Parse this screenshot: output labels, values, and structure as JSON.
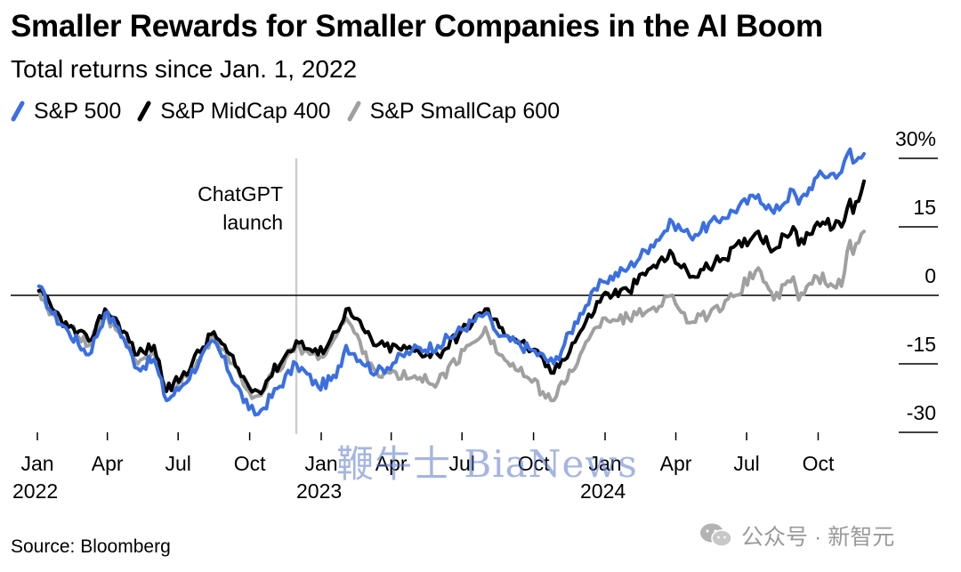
{
  "chart_data": {
    "type": "line",
    "title": "Smaller Rewards for Smaller Companies in the AI Boom",
    "subtitle": "Total returns since Jan. 1, 2022",
    "source": "Source: Bloomberg",
    "y_unit": "%",
    "ylim": [
      -35,
      32
    ],
    "y_ticks": [
      {
        "value": 30,
        "label": "30%"
      },
      {
        "value": 15,
        "label": "15"
      },
      {
        "value": 0,
        "label": "0"
      },
      {
        "value": -15,
        "label": "-15"
      },
      {
        "value": -30,
        "label": "-30"
      }
    ],
    "x_ticks": [
      {
        "date": "2022-01-01",
        "label": "Jan",
        "year": "2022"
      },
      {
        "date": "2022-04-01",
        "label": "Apr",
        "year": ""
      },
      {
        "date": "2022-07-01",
        "label": "Jul",
        "year": ""
      },
      {
        "date": "2022-10-01",
        "label": "Oct",
        "year": ""
      },
      {
        "date": "2023-01-01",
        "label": "Jan",
        "year": "2023"
      },
      {
        "date": "2023-04-01",
        "label": "Apr",
        "year": ""
      },
      {
        "date": "2023-07-01",
        "label": "Jul",
        "year": ""
      },
      {
        "date": "2023-10-01",
        "label": "Oct",
        "year": ""
      },
      {
        "date": "2024-01-01",
        "label": "Jan",
        "year": "2024"
      },
      {
        "date": "2024-04-01",
        "label": "Apr",
        "year": ""
      },
      {
        "date": "2024-07-01",
        "label": "Jul",
        "year": ""
      },
      {
        "date": "2024-10-01",
        "label": "Oct",
        "year": ""
      }
    ],
    "xlim": [
      "2022-01-01",
      "2024-12-15"
    ],
    "annotation": {
      "date": "2022-11-30",
      "text": [
        "ChatGPT",
        "launch"
      ]
    },
    "series": [
      {
        "name": "S&P 500",
        "color": "#3b6fe0",
        "points": [
          [
            "2022-01-03",
            2
          ],
          [
            "2022-01-20",
            -4
          ],
          [
            "2022-02-10",
            -8
          ],
          [
            "2022-03-08",
            -13
          ],
          [
            "2022-03-29",
            -4
          ],
          [
            "2022-04-15",
            -7
          ],
          [
            "2022-05-10",
            -16
          ],
          [
            "2022-05-31",
            -14
          ],
          [
            "2022-06-16",
            -23
          ],
          [
            "2022-07-05",
            -20
          ],
          [
            "2022-08-16",
            -10
          ],
          [
            "2022-09-30",
            -25
          ],
          [
            "2022-10-12",
            -26
          ],
          [
            "2022-11-30",
            -15
          ],
          [
            "2022-12-28",
            -20
          ],
          [
            "2023-01-20",
            -18
          ],
          [
            "2023-02-02",
            -11
          ],
          [
            "2023-03-13",
            -17
          ],
          [
            "2023-04-28",
            -12
          ],
          [
            "2023-05-31",
            -11
          ],
          [
            "2023-07-31",
            -4
          ],
          [
            "2023-08-18",
            -9
          ],
          [
            "2023-09-29",
            -12
          ],
          [
            "2023-10-27",
            -15
          ],
          [
            "2023-11-30",
            -4
          ],
          [
            "2023-12-29",
            3
          ],
          [
            "2024-01-31",
            6
          ],
          [
            "2024-02-29",
            11
          ],
          [
            "2024-03-28",
            16
          ],
          [
            "2024-04-19",
            13
          ],
          [
            "2024-05-31",
            17
          ],
          [
            "2024-07-16",
            22
          ],
          [
            "2024-08-05",
            18
          ],
          [
            "2024-08-30",
            23
          ],
          [
            "2024-09-06",
            20
          ],
          [
            "2024-09-30",
            26
          ],
          [
            "2024-10-31",
            27
          ],
          [
            "2024-11-11",
            32
          ],
          [
            "2024-11-15",
            29
          ],
          [
            "2024-11-29",
            31
          ]
        ]
      },
      {
        "name": "S&P MidCap 400",
        "color": "#000000",
        "points": [
          [
            "2022-01-03",
            1
          ],
          [
            "2022-01-20",
            -3
          ],
          [
            "2022-02-10",
            -7
          ],
          [
            "2022-03-08",
            -10
          ],
          [
            "2022-03-29",
            -3
          ],
          [
            "2022-04-15",
            -6
          ],
          [
            "2022-05-10",
            -13
          ],
          [
            "2022-05-31",
            -11
          ],
          [
            "2022-06-16",
            -21
          ],
          [
            "2022-07-05",
            -18
          ],
          [
            "2022-08-16",
            -8
          ],
          [
            "2022-09-30",
            -20
          ],
          [
            "2022-10-12",
            -21
          ],
          [
            "2022-11-30",
            -10
          ],
          [
            "2022-12-28",
            -13
          ],
          [
            "2023-01-20",
            -8
          ],
          [
            "2023-02-02",
            -3
          ],
          [
            "2023-03-13",
            -11
          ],
          [
            "2023-04-28",
            -12
          ],
          [
            "2023-05-31",
            -13
          ],
          [
            "2023-07-31",
            -3
          ],
          [
            "2023-08-18",
            -7
          ],
          [
            "2023-09-29",
            -12
          ],
          [
            "2023-10-27",
            -17
          ],
          [
            "2023-11-30",
            -8
          ],
          [
            "2023-12-29",
            0
          ],
          [
            "2024-01-31",
            1
          ],
          [
            "2024-02-29",
            6
          ],
          [
            "2024-03-28",
            9
          ],
          [
            "2024-04-19",
            4
          ],
          [
            "2024-05-31",
            8
          ],
          [
            "2024-07-16",
            14
          ],
          [
            "2024-08-05",
            10
          ],
          [
            "2024-08-30",
            15
          ],
          [
            "2024-09-06",
            11
          ],
          [
            "2024-09-30",
            16
          ],
          [
            "2024-10-31",
            15
          ],
          [
            "2024-11-11",
            21
          ],
          [
            "2024-11-15",
            18
          ],
          [
            "2024-11-29",
            25
          ]
        ]
      },
      {
        "name": "S&P SmallCap 600",
        "color": "#a0a0a0",
        "points": [
          [
            "2022-01-03",
            1
          ],
          [
            "2022-01-20",
            -4
          ],
          [
            "2022-02-10",
            -7
          ],
          [
            "2022-03-08",
            -11
          ],
          [
            "2022-03-29",
            -5
          ],
          [
            "2022-04-15",
            -8
          ],
          [
            "2022-05-10",
            -15
          ],
          [
            "2022-05-31",
            -13
          ],
          [
            "2022-06-16",
            -21
          ],
          [
            "2022-07-05",
            -19
          ],
          [
            "2022-08-16",
            -9
          ],
          [
            "2022-09-30",
            -21
          ],
          [
            "2022-10-12",
            -22
          ],
          [
            "2022-11-30",
            -11
          ],
          [
            "2022-12-28",
            -14
          ],
          [
            "2023-01-20",
            -9
          ],
          [
            "2023-02-02",
            -5
          ],
          [
            "2023-03-13",
            -17
          ],
          [
            "2023-04-28",
            -18
          ],
          [
            "2023-05-31",
            -19
          ],
          [
            "2023-07-31",
            -7
          ],
          [
            "2023-08-18",
            -13
          ],
          [
            "2023-09-29",
            -19
          ],
          [
            "2023-10-27",
            -23
          ],
          [
            "2023-11-30",
            -13
          ],
          [
            "2023-12-29",
            -5
          ],
          [
            "2024-01-31",
            -5
          ],
          [
            "2024-02-29",
            -3
          ],
          [
            "2024-03-28",
            0
          ],
          [
            "2024-04-19",
            -6
          ],
          [
            "2024-05-31",
            -3
          ],
          [
            "2024-07-16",
            6
          ],
          [
            "2024-08-05",
            -1
          ],
          [
            "2024-08-30",
            4
          ],
          [
            "2024-09-06",
            -1
          ],
          [
            "2024-09-30",
            4
          ],
          [
            "2024-10-31",
            2
          ],
          [
            "2024-11-11",
            12
          ],
          [
            "2024-11-15",
            9
          ],
          [
            "2024-11-29",
            14
          ]
        ]
      }
    ]
  },
  "watermark": {
    "text": "鞭牛士 BiaNews",
    "channel": "公众号 · 新智元"
  }
}
